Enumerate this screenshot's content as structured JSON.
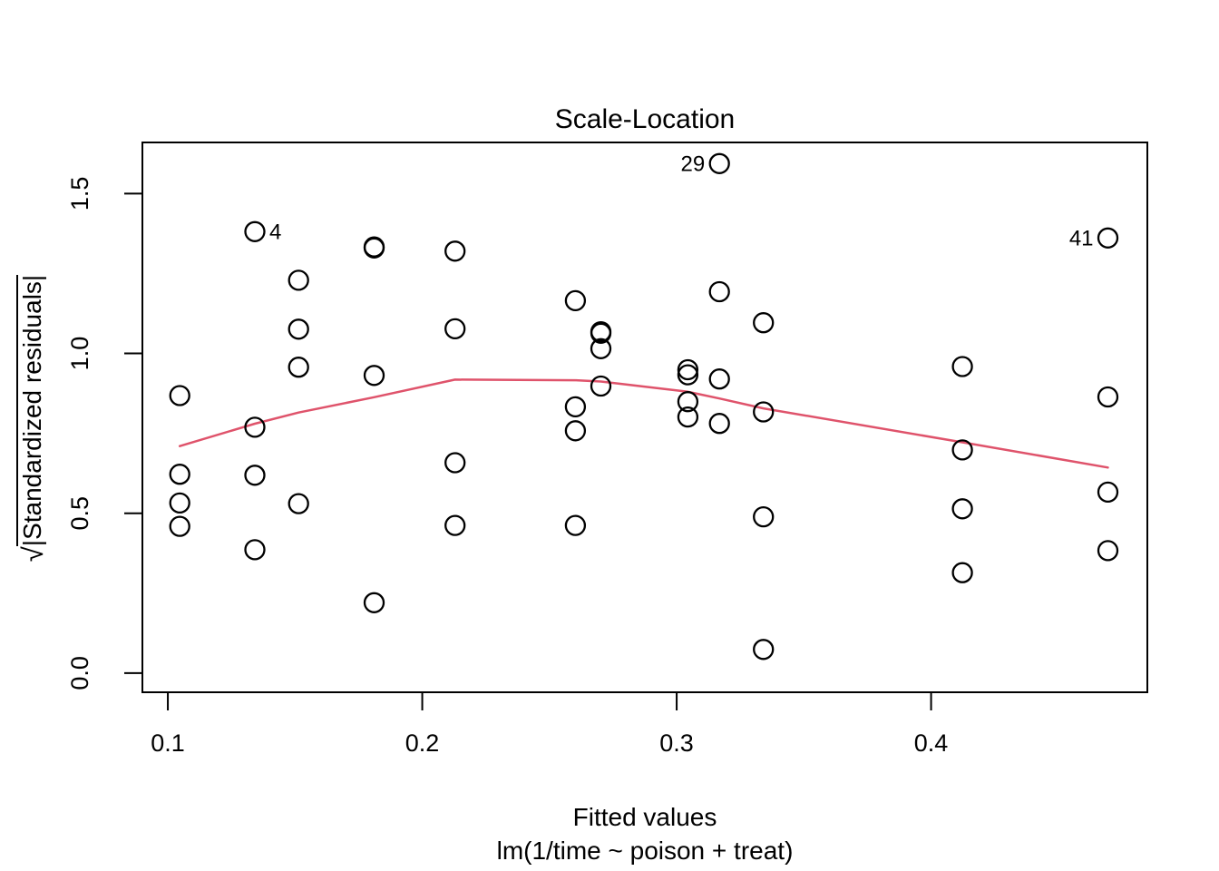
{
  "figure": {
    "background": "#ffffff",
    "foreground": "#000000"
  },
  "chart_data": {
    "type": "scatter",
    "title": "Scale-Location",
    "xlabel": "Fitted values",
    "xlabel_sub": "lm(1/time ~ poison + treat)",
    "ylabel_sqrt": "√",
    "ylabel_core": "|Standardized residuals|",
    "xlim": [
      0.09,
      0.485
    ],
    "ylim": [
      -0.06,
      1.66
    ],
    "grid": false,
    "legend": null,
    "x_tick_values": [
      0.1,
      0.2,
      0.3,
      0.4
    ],
    "x_tick_labels": [
      "0.1",
      "0.2",
      "0.3",
      "0.4"
    ],
    "y_tick_values": [
      0.0,
      0.5,
      1.0,
      1.5
    ],
    "y_tick_labels": [
      "0.0",
      "0.5",
      "1.0",
      "1.5"
    ],
    "point_color": "#000000",
    "smoother_color": "#DF536B",
    "points": [
      [
        0.1047,
        0.868
      ],
      [
        0.1047,
        0.622
      ],
      [
        0.1047,
        0.532
      ],
      [
        0.1047,
        0.459
      ],
      [
        0.1342,
        1.381
      ],
      [
        0.1342,
        0.769
      ],
      [
        0.1342,
        0.619
      ],
      [
        0.1342,
        0.386
      ],
      [
        0.1514,
        1.229
      ],
      [
        0.1514,
        1.076
      ],
      [
        0.1514,
        0.957
      ],
      [
        0.1514,
        0.53
      ],
      [
        0.1811,
        1.333
      ],
      [
        0.1811,
        1.33
      ],
      [
        0.1811,
        0.931
      ],
      [
        0.1811,
        0.22
      ],
      [
        0.2129,
        1.32
      ],
      [
        0.2129,
        1.077
      ],
      [
        0.2129,
        0.658
      ],
      [
        0.2129,
        0.462
      ],
      [
        0.2602,
        1.165
      ],
      [
        0.2602,
        0.833
      ],
      [
        0.2602,
        0.758
      ],
      [
        0.2602,
        0.462
      ],
      [
        0.2702,
        1.068
      ],
      [
        0.2702,
        1.063
      ],
      [
        0.2702,
        1.015
      ],
      [
        0.2702,
        0.898
      ],
      [
        0.3044,
        0.949
      ],
      [
        0.3044,
        0.933
      ],
      [
        0.3044,
        0.849
      ],
      [
        0.3044,
        0.801
      ],
      [
        0.3168,
        1.594
      ],
      [
        0.3168,
        1.193
      ],
      [
        0.3168,
        0.92
      ],
      [
        0.3168,
        0.781
      ],
      [
        0.3341,
        1.096
      ],
      [
        0.3341,
        0.817
      ],
      [
        0.3341,
        0.489
      ],
      [
        0.3341,
        0.074
      ],
      [
        0.4123,
        0.959
      ],
      [
        0.4123,
        0.698
      ],
      [
        0.4123,
        0.514
      ],
      [
        0.4123,
        0.314
      ],
      [
        0.4695,
        1.361
      ],
      [
        0.4695,
        0.864
      ],
      [
        0.4695,
        0.566
      ],
      [
        0.4695,
        0.383
      ]
    ],
    "labeled_points": [
      {
        "label": "4",
        "x": 0.1342,
        "y": 1.381,
        "side": "right"
      },
      {
        "label": "29",
        "x": 0.3168,
        "y": 1.594,
        "side": "left"
      },
      {
        "label": "41",
        "x": 0.4695,
        "y": 1.361,
        "side": "left"
      }
    ],
    "smoother": [
      [
        0.1047,
        0.71
      ],
      [
        0.1342,
        0.78
      ],
      [
        0.1514,
        0.815
      ],
      [
        0.1811,
        0.863
      ],
      [
        0.2129,
        0.918
      ],
      [
        0.2602,
        0.916
      ],
      [
        0.2702,
        0.912
      ],
      [
        0.3044,
        0.88
      ],
      [
        0.3168,
        0.859
      ],
      [
        0.3341,
        0.828
      ],
      [
        0.4123,
        0.722
      ],
      [
        0.4695,
        0.643
      ]
    ]
  }
}
